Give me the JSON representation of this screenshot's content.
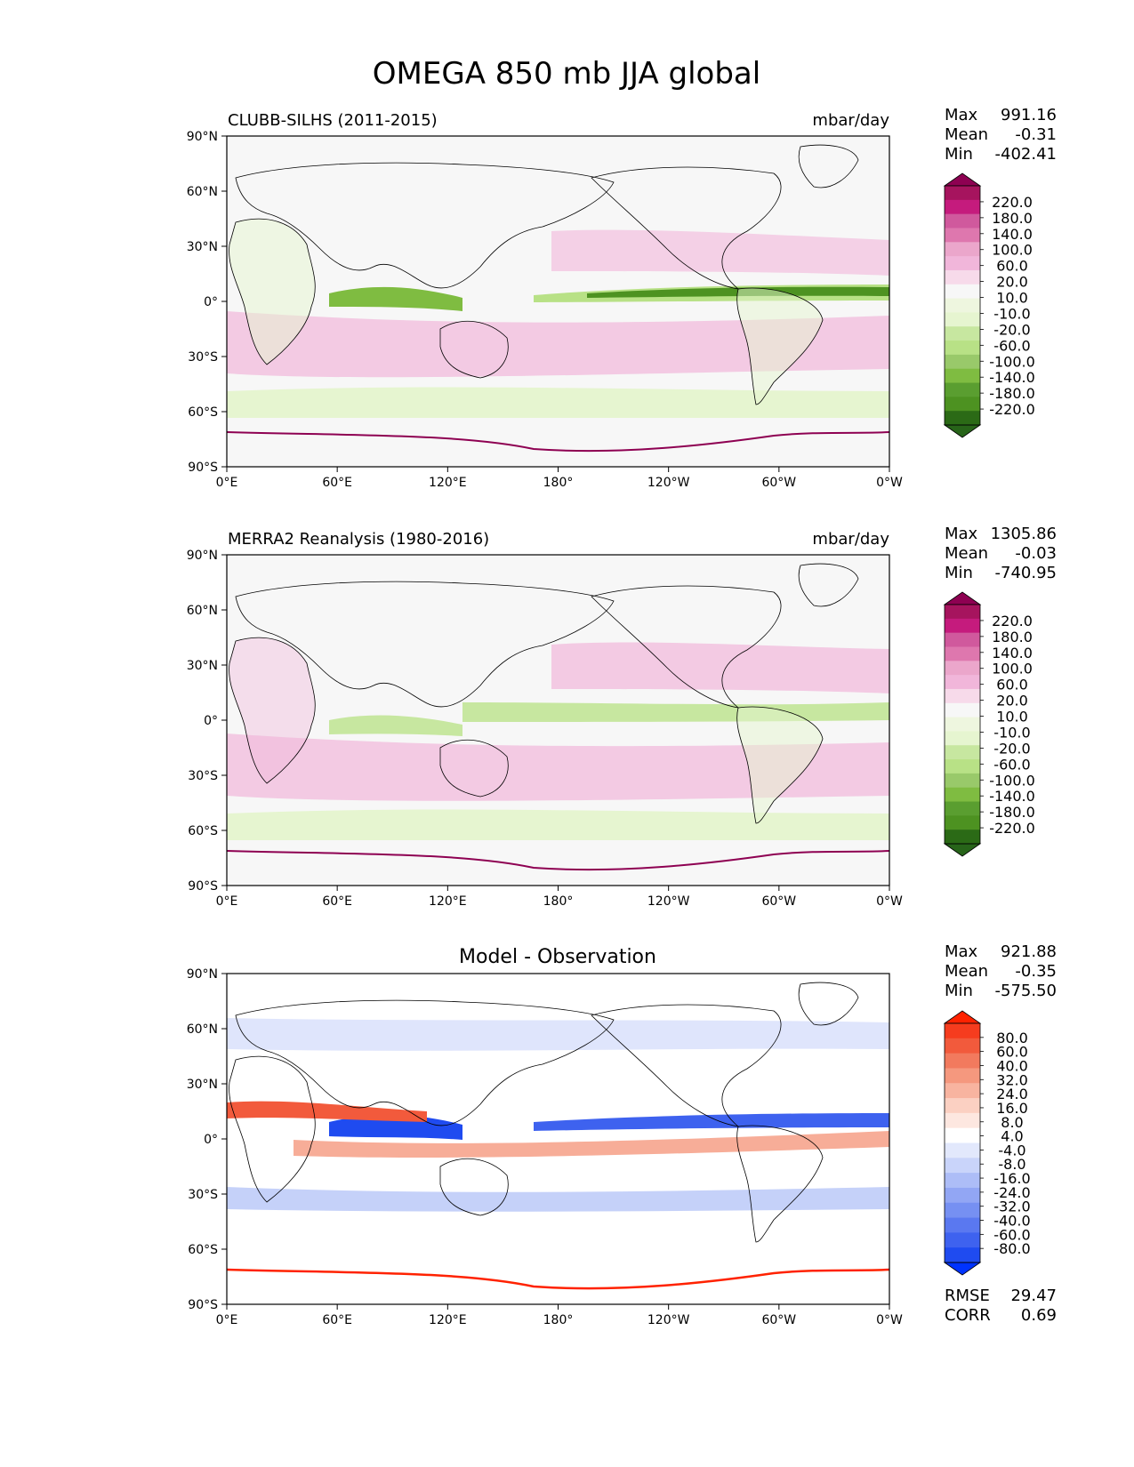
{
  "figure": {
    "title": "OMEGA 850 mb JJA global"
  },
  "axes": {
    "lat_labels": [
      "90°N",
      "60°N",
      "30°N",
      "0°",
      "30°S",
      "60°S",
      "90°S"
    ],
    "lon_labels": [
      "0°E",
      "60°E",
      "120°E",
      "180°",
      "120°W",
      "60°W",
      "0°W"
    ]
  },
  "panels": [
    {
      "id": "model",
      "left_title": "CLUBB-SILHS (2011-2015)",
      "center_title": "",
      "units": "mbar/day",
      "stats": [
        {
          "label": "Max",
          "value": "991.16"
        },
        {
          "label": "Mean",
          "value": "-0.31"
        },
        {
          "label": "Min",
          "value": "-402.41"
        }
      ],
      "colorbar": {
        "labels": [
          "220.0",
          "180.0",
          "140.0",
          "100.0",
          "60.0",
          "20.0",
          "10.0",
          "-10.0",
          "-20.0",
          "-60.0",
          "-100.0",
          "-140.0",
          "-180.0",
          "-220.0"
        ],
        "colors": [
          "#8e0152",
          "#a6145e",
          "#c51b7d",
          "#d0599d",
          "#de77ae",
          "#eba6cb",
          "#f1b6da",
          "#f7daea",
          "#f7f7f7",
          "#eef6df",
          "#e6f5d0",
          "#c7e7a0",
          "#b8e186",
          "#99c96a",
          "#7fbc41",
          "#5a9e30",
          "#4d9221",
          "#2b6a16",
          "#276419"
        ]
      }
    },
    {
      "id": "obs",
      "left_title": "MERRA2 Reanalysis (1980-2016)",
      "center_title": "",
      "units": "mbar/day",
      "stats": [
        {
          "label": "Max",
          "value": "1305.86"
        },
        {
          "label": "Mean",
          "value": "-0.03"
        },
        {
          "label": "Min",
          "value": "-740.95"
        }
      ],
      "colorbar": {
        "labels": [
          "220.0",
          "180.0",
          "140.0",
          "100.0",
          "60.0",
          "20.0",
          "10.0",
          "-10.0",
          "-20.0",
          "-60.0",
          "-100.0",
          "-140.0",
          "-180.0",
          "-220.0"
        ],
        "colors": [
          "#8e0152",
          "#a6145e",
          "#c51b7d",
          "#d0599d",
          "#de77ae",
          "#eba6cb",
          "#f1b6da",
          "#f7daea",
          "#f7f7f7",
          "#eef6df",
          "#e6f5d0",
          "#c7e7a0",
          "#b8e186",
          "#99c96a",
          "#7fbc41",
          "#5a9e30",
          "#4d9221",
          "#2b6a16",
          "#276419"
        ]
      }
    },
    {
      "id": "diff",
      "left_title": "",
      "center_title": "Model - Observation",
      "units": "",
      "stats": [
        {
          "label": "Max",
          "value": "921.88"
        },
        {
          "label": "Mean",
          "value": "-0.35"
        },
        {
          "label": "Min",
          "value": "-575.50"
        }
      ],
      "extra_stats": [
        {
          "label": "RMSE",
          "value": "29.47"
        },
        {
          "label": "CORR",
          "value": "0.69"
        }
      ],
      "colorbar": {
        "labels": [
          "80.0",
          "60.0",
          "40.0",
          "32.0",
          "24.0",
          "16.0",
          "8.0",
          "4.0",
          "-4.0",
          "-8.0",
          "-16.0",
          "-24.0",
          "-32.0",
          "-40.0",
          "-60.0",
          "-80.0"
        ],
        "colors": [
          "#ff2200",
          "#f63c1e",
          "#f25a3c",
          "#f27a5e",
          "#f5987e",
          "#f8b4a0",
          "#fbd0c2",
          "#fde7e0",
          "#ffffff",
          "#e2e8fc",
          "#c9d4fa",
          "#adbdf7",
          "#92a6f4",
          "#7690f2",
          "#5a78f0",
          "#3e62ef",
          "#1f4bf0",
          "#0033ff"
        ]
      }
    }
  ]
}
